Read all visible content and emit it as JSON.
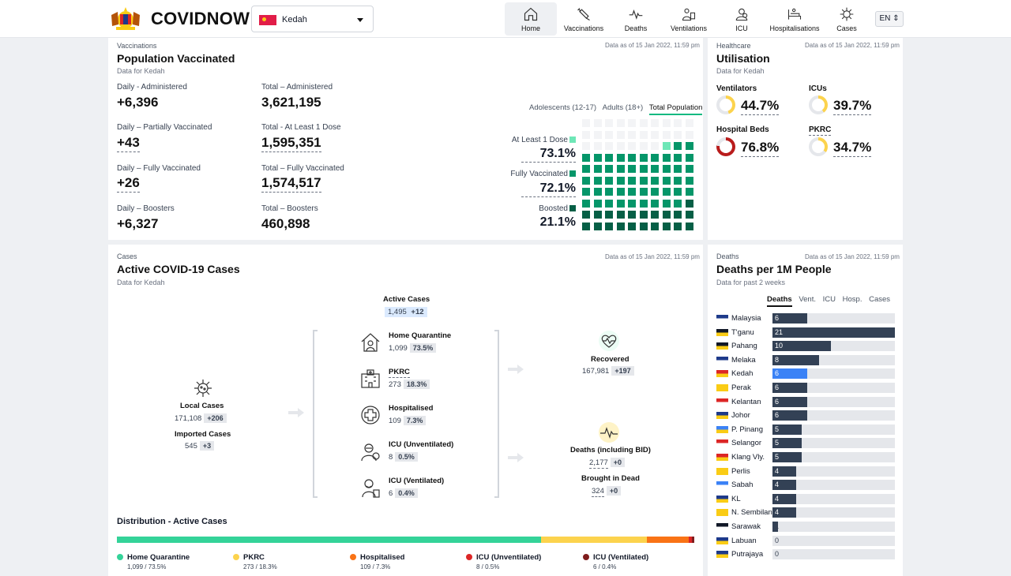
{
  "app": {
    "brand": "COVIDNOW",
    "state": "Kedah",
    "lang": "EN"
  },
  "nav": [
    {
      "label": "Home",
      "icon": "home-icon"
    },
    {
      "label": "Vaccinations",
      "icon": "syringe-icon"
    },
    {
      "label": "Deaths",
      "icon": "pulse-icon"
    },
    {
      "label": "Ventilations",
      "icon": "ventilator-icon"
    },
    {
      "label": "ICU",
      "icon": "icu-icon"
    },
    {
      "label": "Hospitalisations",
      "icon": "hospital-bed-icon"
    },
    {
      "label": "Cases",
      "icon": "virus-icon"
    }
  ],
  "vaccinations": {
    "category": "Vaccinations",
    "title": "Population Vaccinated",
    "subtitle": "Data for Kedah",
    "data_as_of": "Data as of 15 Jan 2022, 11:59 pm",
    "stats": [
      {
        "label": "Daily - Administered",
        "value": "+6,396"
      },
      {
        "label": "Total – Administered",
        "value": "3,621,195"
      },
      {
        "label": "Daily – Partially Vaccinated",
        "value": "+43"
      },
      {
        "label": "Total - At Least 1 Dose",
        "value": "1,595,351"
      },
      {
        "label": "Daily – Fully Vaccinated",
        "value": "+26"
      },
      {
        "label": "Total – Fully Vaccinated",
        "value": "1,574,517"
      },
      {
        "label": "Daily – Boosters",
        "value": "+6,327"
      },
      {
        "label": "Total – Boosters",
        "value": "460,898"
      }
    ],
    "tabs": [
      "Adolescents (12-17)",
      "Adults (18+)",
      "Total Population"
    ],
    "active_tab": "Total Population",
    "percentages": [
      {
        "label": "At Least 1 Dose",
        "value": "73.1%",
        "color": "#6ee7b7",
        "pct": 73.1
      },
      {
        "label": "Fully Vaccinated",
        "value": "72.1%",
        "color": "#059669",
        "pct": 72.1
      },
      {
        "label": "Boosted",
        "value": "21.1%",
        "color": "#065f46",
        "pct": 21.1
      }
    ]
  },
  "healthcare": {
    "category": "Healthcare",
    "title": "Utilisation",
    "subtitle": "Data for Kedah",
    "data_as_of": "Data as of 15 Jan 2022, 11:59 pm",
    "items": [
      {
        "label": "Ventilators",
        "value": "44.7%",
        "pct": 44.7,
        "color": "#fcd34d"
      },
      {
        "label": "ICUs",
        "value": "39.7%",
        "pct": 39.7,
        "color": "#fcd34d"
      },
      {
        "label": "Hospital Beds",
        "value": "76.8%",
        "pct": 76.8,
        "color": "#b91c1c"
      },
      {
        "label": "PKRC",
        "value": "34.7%",
        "pct": 34.7,
        "color": "#fcd34d"
      }
    ]
  },
  "cases": {
    "category": "Cases",
    "title": "Active COVID-19 Cases",
    "subtitle": "Data for Kedah",
    "data_as_of": "Data as of 15 Jan 2022, 11:59 pm",
    "active": {
      "label": "Active Cases",
      "value": "1,495",
      "delta": "+12"
    },
    "local": {
      "label": "Local Cases",
      "value": "171,108",
      "delta": "+206"
    },
    "imported": {
      "label": "Imported Cases",
      "value": "545",
      "delta": "+3"
    },
    "breakdown": [
      {
        "label": "Home Quarantine",
        "value": "1,099",
        "pct": "73.5%",
        "icon": "home-quarantine-icon"
      },
      {
        "label": "PKRC",
        "value": "273",
        "pct": "18.3%",
        "icon": "pkrc-building-icon"
      },
      {
        "label": "Hospitalised",
        "value": "109",
        "pct": "7.3%",
        "icon": "hospital-cross-icon"
      },
      {
        "label": "ICU (Unventilated)",
        "value": "8",
        "pct": "0.5%",
        "icon": "icu-unventilated-icon"
      },
      {
        "label": "ICU (Ventilated)",
        "value": "6",
        "pct": "0.4%",
        "icon": "icu-ventilated-icon"
      }
    ],
    "recovered": {
      "label": "Recovered",
      "value": "167,981",
      "delta": "+197"
    },
    "deaths": {
      "label": "Deaths (including BID)",
      "value": "2,177",
      "delta": "+0"
    },
    "bid": {
      "label": "Brought in Dead",
      "value": "324",
      "delta": "+0"
    },
    "distribution_title": "Distribution - Active Cases",
    "distribution": [
      {
        "label": "Home Quarantine",
        "detail": "1,099 / 73.5%",
        "pct": 73.5,
        "color": "#34d399"
      },
      {
        "label": "PKRC",
        "detail": "273 / 18.3%",
        "pct": 18.3,
        "color": "#fcd34d"
      },
      {
        "label": "Hospitalised",
        "detail": "109 / 7.3%",
        "pct": 7.3,
        "color": "#f97316"
      },
      {
        "label": "ICU (Unventilated)",
        "detail": "8 / 0.5%",
        "pct": 0.5,
        "color": "#dc2626"
      },
      {
        "label": "ICU (Ventilated)",
        "detail": "6 / 0.4%",
        "pct": 0.4,
        "color": "#7f1d1d"
      }
    ]
  },
  "deaths": {
    "category": "Deaths",
    "title": "Deaths per 1M People",
    "subtitle": "Data for past 2 weeks",
    "data_as_of": "Data as of 15 Jan 2022, 11:59 pm",
    "tabs": [
      "Deaths",
      "Vent.",
      "ICU",
      "Hosp.",
      "Cases"
    ],
    "active_tab": "Deaths",
    "highlight_color": "#3b82f6",
    "bar_color": "#334155",
    "chart_data": {
      "type": "bar",
      "categories": [
        "Malaysia",
        "T'ganu",
        "Pahang",
        "Melaka",
        "Kedah",
        "Perak",
        "Kelantan",
        "Johor",
        "P. Pinang",
        "Selangor",
        "Klang Vly.",
        "Perlis",
        "Sabah",
        "KL",
        "N. Sembilan",
        "Sarawak",
        "Labuan",
        "Putrajaya"
      ],
      "values": [
        6,
        21,
        10,
        8,
        6,
        6,
        6,
        6,
        5,
        5,
        5,
        4,
        4,
        4,
        4,
        1,
        0,
        0
      ],
      "labels": [
        "6",
        "21",
        "10",
        "8",
        "6",
        "6",
        "6",
        "6",
        "5",
        "5",
        "5",
        "4",
        "4",
        "4",
        "4",
        "1",
        "0",
        "0"
      ],
      "highlight": "Kedah",
      "xlim": [
        0,
        21
      ]
    }
  }
}
